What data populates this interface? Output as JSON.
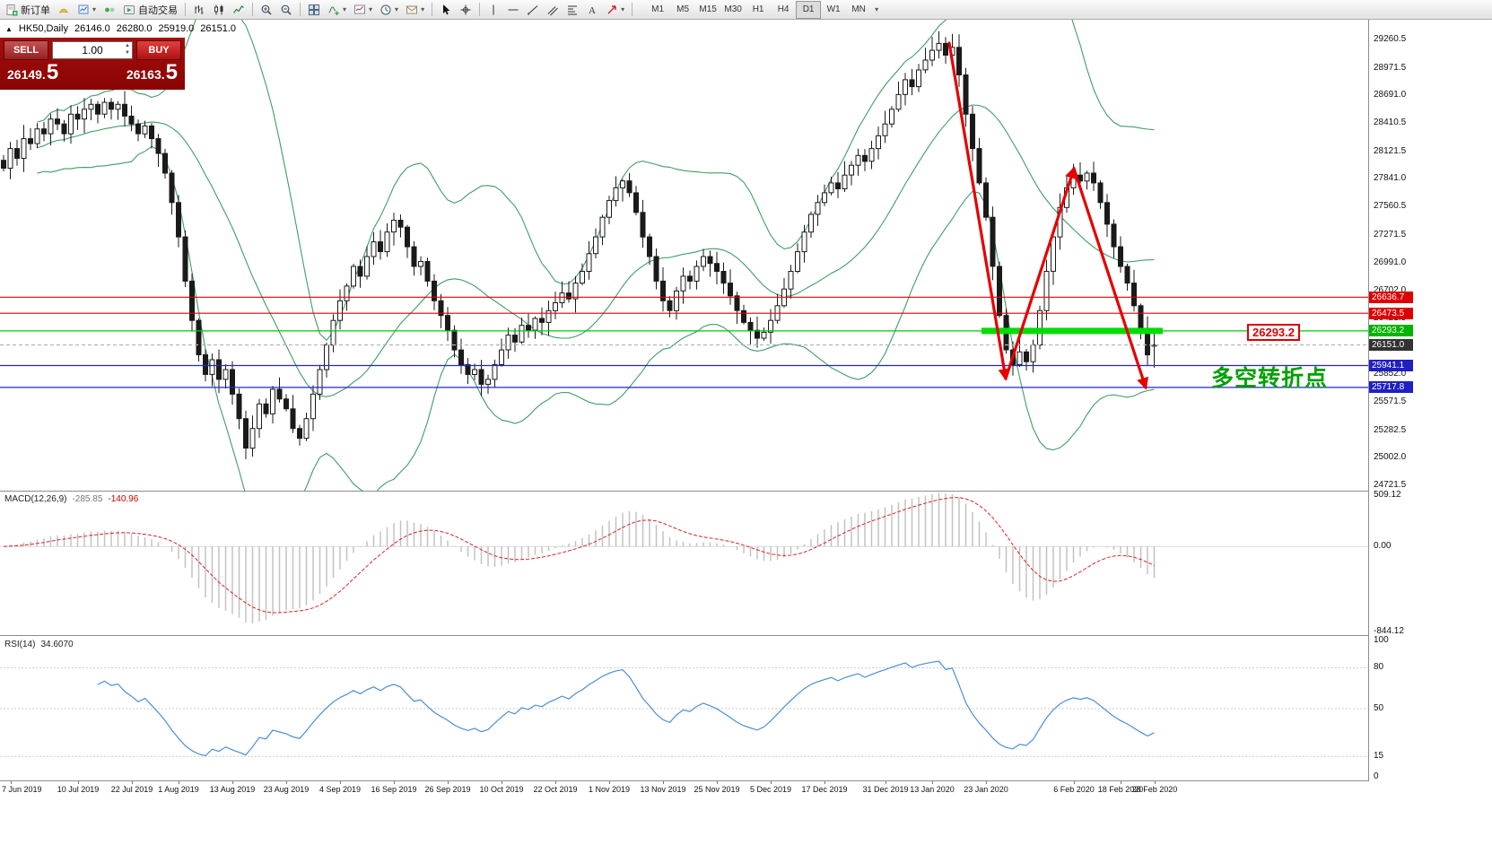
{
  "toolbar": {
    "buttons": [
      {
        "name": "new-order-button",
        "icon": "doc-plus",
        "label": "新订单"
      },
      {
        "name": "mql5-hat-button",
        "icon": "hat"
      },
      {
        "name": "chart-profile-button",
        "icon": "profile",
        "caret": true
      },
      {
        "name": "news-button",
        "icon": "news"
      },
      {
        "name": "auto-trading-button",
        "icon": "autotrade",
        "label": "自动交易"
      },
      {
        "sep": true
      },
      {
        "name": "bar-chart-button",
        "icon": "bars"
      },
      {
        "name": "candlestick-button",
        "icon": "candles"
      },
      {
        "name": "line-chart-button",
        "icon": "linechart"
      },
      {
        "sep": true
      },
      {
        "name": "zoom-in-button",
        "icon": "zoom-in"
      },
      {
        "name": "zoom-out-button",
        "icon": "zoom-out"
      },
      {
        "sep": true
      },
      {
        "name": "tile-windows-button",
        "icon": "tile"
      },
      {
        "name": "indicators-button",
        "icon": "indicators",
        "caret": true
      },
      {
        "name": "new-chart-button",
        "icon": "new-chart",
        "caret": true
      },
      {
        "name": "period-clock-button",
        "icon": "clock",
        "caret": true
      },
      {
        "name": "mailbox-button",
        "icon": "mail",
        "caret": true
      },
      {
        "sep": true
      },
      {
        "name": "cursor-button",
        "icon": "cursor"
      },
      {
        "name": "crosshair-button",
        "icon": "crosshair"
      },
      {
        "sep": true
      },
      {
        "name": "vertical-line-button",
        "icon": "vline"
      },
      {
        "name": "horizontal-line-button",
        "icon": "hline"
      },
      {
        "name": "trendline-button",
        "icon": "trendline"
      },
      {
        "name": "channel-button",
        "icon": "channel"
      },
      {
        "name": "fibonacci-button",
        "icon": "fibo"
      },
      {
        "name": "text-button",
        "icon": "text"
      },
      {
        "name": "arrows-button",
        "icon": "arrows",
        "caret": true
      },
      {
        "sep": true
      }
    ],
    "timeframes": [
      "M1",
      "M5",
      "M15",
      "M30",
      "H1",
      "H4",
      "D1",
      "W1",
      "MN"
    ],
    "active_timeframe": "D1"
  },
  "chart_header": {
    "symbol": "HK50,Daily",
    "open": "26146.0",
    "high": "26280.0",
    "low": "25919.0",
    "close": "26151.0"
  },
  "trade_panel": {
    "sell_label": "SELL",
    "buy_label": "BUY",
    "volume": "1.00",
    "sell_price_main": "26149.",
    "sell_price_pip": "5",
    "buy_price_main": "26163.",
    "buy_price_pip": "5"
  },
  "annotations": {
    "price_label": "26293.2",
    "turning_point_text": "多空转折点",
    "highlight_color": "#00dd00",
    "trend_arrow_color": "#e60000"
  },
  "levels": [
    {
      "price": 26636.7,
      "color": "#e00000",
      "style": "solid"
    },
    {
      "price": 26473.5,
      "color": "#e00000",
      "style": "solid"
    },
    {
      "price": 26293.2,
      "color": "#00c800",
      "style": "solid"
    },
    {
      "price": 26151.0,
      "color": "#b4b4b4",
      "style": "dash"
    },
    {
      "price": 25941.1,
      "color": "#2424cc",
      "style": "solid"
    },
    {
      "price": 25717.8,
      "color": "#2424cc",
      "style": "solid"
    }
  ],
  "price_axis": {
    "ticks": [
      29260.5,
      28971.5,
      28691.0,
      28410.5,
      28121.5,
      27841.0,
      27560.5,
      27271.5,
      26991.0,
      26702.0,
      26421.5,
      26141.0,
      25852.0,
      25571.5,
      25282.5,
      25002.0,
      24721.5
    ],
    "badges": [
      {
        "label": "26636.7",
        "price": 26636.7,
        "color": "#dd0000"
      },
      {
        "label": "26473.5",
        "price": 26473.5,
        "color": "#dd0000"
      },
      {
        "label": "26293.2",
        "price": 26293.2,
        "color": "#00b400"
      },
      {
        "label": "26151.0",
        "price": 26151.0,
        "color": "#323232"
      },
      {
        "label": "25941.1",
        "price": 25941.1,
        "color": "#2020c0"
      },
      {
        "label": "25717.8",
        "price": 25717.8,
        "color": "#2020c0"
      }
    ]
  },
  "macd_panel": {
    "label": "MACD(12,26,9)",
    "value_main": "-285.85",
    "value_signal": "-140.96",
    "ticks": [
      509.12,
      0,
      -844.12
    ]
  },
  "rsi_panel": {
    "label": "RSI(14)",
    "value": "34.6070",
    "ticks": [
      100,
      80,
      50,
      15,
      0
    ],
    "levels": [
      80,
      50,
      15
    ]
  },
  "time_axis": {
    "labels": [
      {
        "text": "7 Jun 2019",
        "i": 1
      },
      {
        "text": "10 Jul 2019",
        "i": 11
      },
      {
        "text": "22 Jul 2019",
        "i": 19
      },
      {
        "text": "1 Aug 2019",
        "i": 26
      },
      {
        "text": "13 Aug 2019",
        "i": 34
      },
      {
        "text": "23 Aug 2019",
        "i": 42
      },
      {
        "text": "4 Sep 2019",
        "i": 50
      },
      {
        "text": "16 Sep 2019",
        "i": 58
      },
      {
        "text": "26 Sep 2019",
        "i": 66
      },
      {
        "text": "10 Oct 2019",
        "i": 74
      },
      {
        "text": "22 Oct 2019",
        "i": 82
      },
      {
        "text": "1 Nov 2019",
        "i": 90
      },
      {
        "text": "13 Nov 2019",
        "i": 98
      },
      {
        "text": "25 Nov 2019",
        "i": 106
      },
      {
        "text": "5 Dec 2019",
        "i": 114
      },
      {
        "text": "17 Dec 2019",
        "i": 122
      },
      {
        "text": "31 Dec 2019",
        "i": 131
      },
      {
        "text": "13 Jan 2020",
        "i": 138
      },
      {
        "text": "23 Jan 2020",
        "i": 146
      },
      {
        "text": "6 Feb 2020",
        "i": 159
      },
      {
        "text": "18 Feb 2020",
        "i": 166
      },
      {
        "text": "28 Feb 2020",
        "i": 171
      }
    ]
  },
  "chart_data": {
    "type": "candlestick",
    "symbol": "HK50",
    "timeframe": "Daily",
    "last_ohlc": {
      "open": 26146.0,
      "high": 26280.0,
      "low": 25919.0,
      "close": 26151.0
    },
    "price_axis_top": 29260.5,
    "price_axis_bottom": 24721.5,
    "indicators": {
      "bollinger": {
        "period": 20,
        "deviation": 2
      },
      "macd": {
        "fast": 12,
        "slow": 26,
        "signal": 9,
        "current_main": -285.85,
        "current_signal": -140.96
      },
      "rsi": {
        "period": 14,
        "current": 34.607
      }
    },
    "closes": [
      27950,
      28150,
      28050,
      28250,
      28200,
      28350,
      28300,
      28450,
      28400,
      28300,
      28500,
      28450,
      28550,
      28600,
      28500,
      28620,
      28550,
      28600,
      28480,
      28400,
      28300,
      28380,
      28250,
      28100,
      27900,
      27600,
      27250,
      26800,
      26400,
      26050,
      25850,
      26000,
      25800,
      25900,
      25650,
      25400,
      25100,
      25300,
      25550,
      25450,
      25700,
      25600,
      25500,
      25300,
      25200,
      25400,
      25650,
      25900,
      26150,
      26400,
      26600,
      26750,
      26950,
      26850,
      27050,
      27200,
      27100,
      27300,
      27420,
      27350,
      27150,
      26950,
      27000,
      26800,
      26600,
      26450,
      26300,
      26100,
      25950,
      25850,
      25900,
      25750,
      25800,
      25950,
      26100,
      26250,
      26180,
      26350,
      26300,
      26420,
      26380,
      26500,
      26580,
      26680,
      26620,
      26780,
      26900,
      27080,
      27250,
      27450,
      27620,
      27750,
      27820,
      27700,
      27500,
      27250,
      27050,
      26800,
      26600,
      26500,
      26700,
      26850,
      26800,
      26950,
      27050,
      26980,
      26900,
      26780,
      26650,
      26500,
      26380,
      26300,
      26220,
      26280,
      26400,
      26550,
      26720,
      26900,
      27100,
      27300,
      27480,
      27600,
      27700,
      27800,
      27740,
      27880,
      27980,
      28080,
      28020,
      28150,
      28280,
      28400,
      28550,
      28700,
      28850,
      28780,
      28950,
      29050,
      29150,
      29220,
      29100,
      29180,
      28900,
      28500,
      28150,
      27800,
      27450,
      26950,
      26450,
      26100,
      25950,
      26080,
      25980,
      26150,
      26500,
      26900,
      27250,
      27550,
      27750,
      27880,
      27820,
      27900,
      27800,
      27600,
      27380,
      27150,
      26950,
      26780,
      26550,
      26300,
      26050,
      26151
    ]
  }
}
